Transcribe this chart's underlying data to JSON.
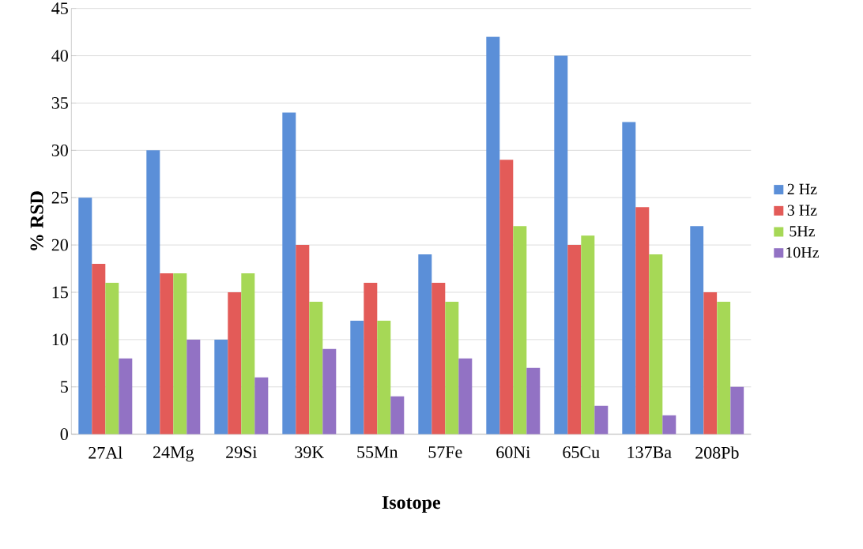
{
  "chart_data": {
    "type": "bar",
    "xlabel": "Isotope",
    "ylabel": "% RSD",
    "categories": [
      "27Al",
      "24Mg",
      "29Si",
      "39K",
      "55Mn",
      "57Fe",
      "60Ni",
      "65Cu",
      "137Ba",
      "208Pb"
    ],
    "series": [
      {
        "name": "2 Hz",
        "color": "#5b8fd8",
        "values": [
          25,
          30,
          10,
          34,
          12,
          19,
          42,
          40,
          33,
          22
        ]
      },
      {
        "name": "3 Hz",
        "color": "#e35b58",
        "values": [
          18,
          17,
          15,
          20,
          16,
          16,
          29,
          20,
          24,
          15
        ]
      },
      {
        "name": "5Hz",
        "color": "#a6d856",
        "values": [
          16,
          17,
          17,
          14,
          12,
          14,
          22,
          21,
          19,
          14
        ]
      },
      {
        "name": "10Hz",
        "color": "#9272c4",
        "values": [
          8,
          10,
          6,
          9,
          4,
          8,
          7,
          3,
          2,
          5
        ]
      }
    ],
    "ylim": [
      0,
      45
    ],
    "yticks": [
      0,
      5,
      10,
      15,
      20,
      25,
      30,
      35,
      40,
      45
    ],
    "grid": "y",
    "legend": "right"
  }
}
